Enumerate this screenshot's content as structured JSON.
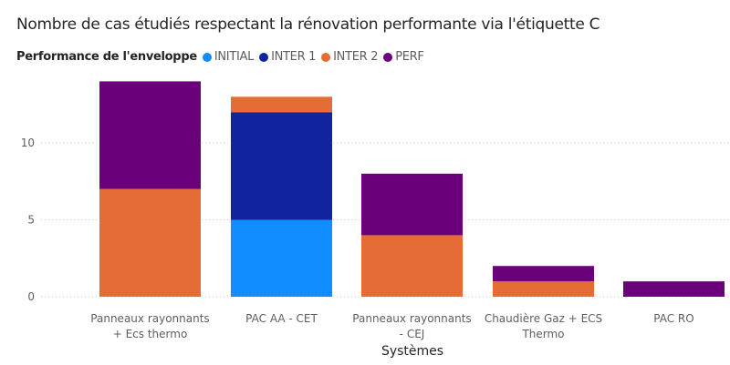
{
  "chart_data": {
    "type": "bar",
    "stacked": true,
    "title": "Nombre de cas étudiés respectant la rénovation performante via l'étiquette C",
    "legend_title": "Performance de l'enveloppe",
    "legend_position": "top-left",
    "xlabel": "Systèmes",
    "ylabel": "",
    "ylim": [
      0,
      14
    ],
    "yticks": [
      0,
      5,
      10
    ],
    "grid": true,
    "categories": [
      [
        "Panneaux rayonnants",
        "+ Ecs thermo"
      ],
      [
        "PAC AA - CET"
      ],
      [
        "Panneaux rayonnants",
        "- CEJ"
      ],
      [
        "Chaudière Gaz + ECS",
        "Thermo"
      ],
      [
        "PAC RO"
      ]
    ],
    "series": [
      {
        "name": "INITIAL",
        "color": "#118dff",
        "values": [
          0,
          5,
          0,
          0,
          0
        ]
      },
      {
        "name": "INTER 1",
        "color": "#12239e",
        "values": [
          0,
          7,
          0,
          0,
          0
        ]
      },
      {
        "name": "INTER 2",
        "color": "#e66c37",
        "values": [
          7,
          1,
          4,
          1,
          0
        ]
      },
      {
        "name": "PERF",
        "color": "#6b007b",
        "values": [
          7,
          0,
          4,
          1,
          1
        ]
      }
    ]
  }
}
